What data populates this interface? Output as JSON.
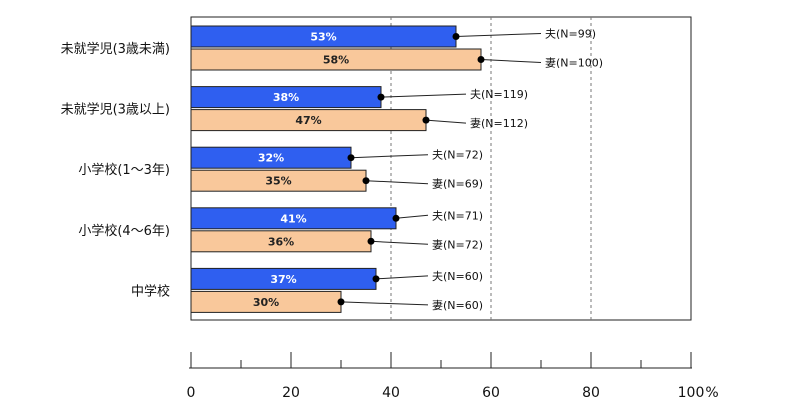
{
  "chart_data": {
    "type": "bar",
    "orientation": "horizontal",
    "categories": [
      "未就学児(3歳未満)",
      "未就学児(3歳以上)",
      "小学校(1～3年)",
      "小学校(4～6年)",
      "中学校"
    ],
    "series": [
      {
        "values": [
          53,
          38,
          32,
          41,
          37
        ],
        "value_labels": [
          "53%",
          "38%",
          "32%",
          "41%",
          "37%"
        ],
        "annotations": [
          "夫(N=99)",
          "夫(N=119)",
          "夫(N=72)",
          "夫(N=71)",
          "夫(N=60)"
        ],
        "color": "#2f5ff0"
      },
      {
        "values": [
          58,
          47,
          35,
          36,
          30
        ],
        "value_labels": [
          "58%",
          "47%",
          "35%",
          "36%",
          "30%"
        ],
        "annotations": [
          "妻(N=100)",
          "妻(N=112)",
          "妻(N=69)",
          "妻(N=72)",
          "妻(N=60)"
        ],
        "color": "#f9c89b"
      }
    ],
    "xlim": [
      0,
      100
    ],
    "xticks": [
      "0",
      "20",
      "40",
      "60",
      "80",
      "100"
    ],
    "x_unit": "%",
    "gridlines": "dashed vertical at 40, 60, 80",
    "legend": "none"
  }
}
